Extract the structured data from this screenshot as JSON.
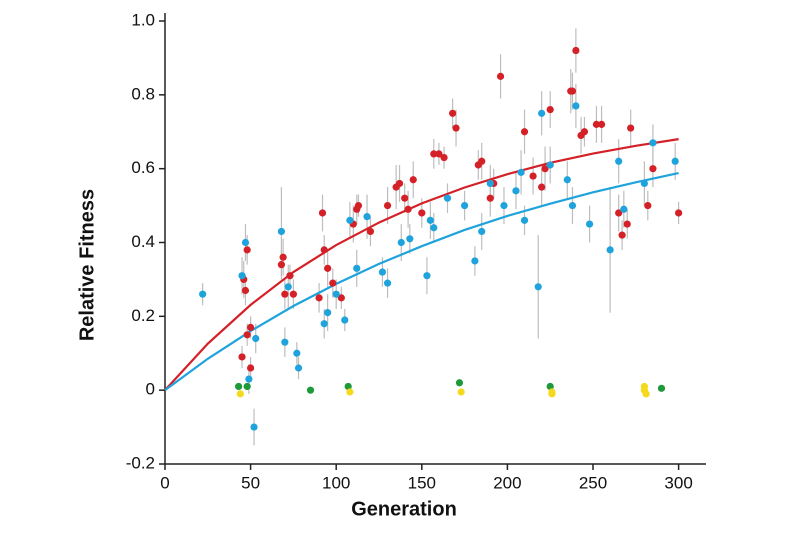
{
  "chart_data": {
    "type": "scatter",
    "xlabel": "Generation",
    "ylabel": "Relative Fitness",
    "xlim": [
      0,
      316
    ],
    "ylim": [
      -0.2,
      1.0
    ],
    "xticks": [
      0,
      50,
      100,
      150,
      200,
      250,
      300
    ],
    "yticks": [
      -0.2,
      0,
      0.2,
      0.4,
      0.6,
      0.8,
      {
        "value": 1,
        "label": "1.0"
      }
    ],
    "error_color": "#bdbdbd",
    "series": [
      {
        "color": "#d42027",
        "x": [
          45,
          46,
          47,
          48,
          48,
          50,
          50,
          68,
          69,
          70,
          73,
          75,
          90,
          92,
          93,
          95,
          98,
          103,
          110,
          112,
          113,
          120,
          130,
          135,
          137,
          140,
          142,
          145,
          150,
          157,
          160,
          163,
          168,
          170,
          183,
          185,
          190,
          192,
          196,
          210,
          215,
          220,
          222,
          225,
          237,
          238,
          240,
          243,
          245,
          252,
          255,
          265,
          267,
          270,
          272,
          282,
          285,
          300
        ],
        "values": [
          0.09,
          0.3,
          0.27,
          0.15,
          0.38,
          0.06,
          0.17,
          0.34,
          0.36,
          0.26,
          0.31,
          0.26,
          0.25,
          0.48,
          0.38,
          0.33,
          0.29,
          0.25,
          0.45,
          0.49,
          0.5,
          0.43,
          0.5,
          0.55,
          0.56,
          0.52,
          0.49,
          0.57,
          0.48,
          0.64,
          0.64,
          0.63,
          0.75,
          0.71,
          0.61,
          0.62,
          0.52,
          0.56,
          0.85,
          0.7,
          0.58,
          0.55,
          0.6,
          0.76,
          0.81,
          0.81,
          0.92,
          0.69,
          0.7,
          0.72,
          0.72,
          0.48,
          0.42,
          0.45,
          0.71,
          0.5,
          0.6,
          0.48
        ],
        "errors": [
          0.03,
          0.05,
          0.04,
          0.03,
          0.04,
          0.03,
          0.03,
          0.04,
          0.05,
          0.04,
          0.03,
          0.04,
          0.04,
          0.05,
          0.04,
          0.05,
          0.04,
          0.03,
          0.05,
          0.04,
          0.03,
          0.04,
          0.05,
          0.06,
          0.05,
          0.04,
          0.05,
          0.05,
          0.04,
          0.04,
          0.03,
          0.03,
          0.04,
          0.05,
          0.04,
          0.05,
          0.05,
          0.04,
          0.06,
          0.06,
          0.05,
          0.05,
          0.06,
          0.05,
          0.06,
          0.05,
          0.06,
          0.05,
          0.04,
          0.05,
          0.05,
          0.05,
          0.04,
          0.04,
          0.05,
          0.04,
          0.05,
          0.03
        ]
      },
      {
        "color": "#1fa3dc",
        "x": [
          22,
          45,
          47,
          49,
          52,
          53,
          68,
          70,
          72,
          77,
          78,
          93,
          95,
          100,
          105,
          108,
          112,
          118,
          127,
          130,
          138,
          143,
          153,
          155,
          157,
          165,
          175,
          181,
          185,
          190,
          198,
          205,
          208,
          210,
          218,
          220,
          225,
          235,
          238,
          240,
          248,
          260,
          265,
          268,
          280,
          285,
          298
        ],
        "values": [
          0.26,
          0.31,
          0.4,
          0.03,
          -0.1,
          0.14,
          0.43,
          0.13,
          0.28,
          0.1,
          0.06,
          0.18,
          0.21,
          0.26,
          0.19,
          0.46,
          0.33,
          0.47,
          0.32,
          0.29,
          0.4,
          0.41,
          0.31,
          0.46,
          0.44,
          0.52,
          0.5,
          0.35,
          0.43,
          0.56,
          0.5,
          0.54,
          0.59,
          0.46,
          0.28,
          0.75,
          0.61,
          0.57,
          0.5,
          0.77,
          0.45,
          0.38,
          0.62,
          0.49,
          0.56,
          0.67,
          0.62
        ],
        "errors": [
          0.03,
          0.05,
          0.05,
          0.04,
          0.05,
          0.04,
          0.12,
          0.04,
          0.06,
          0.03,
          0.03,
          0.04,
          0.05,
          0.04,
          0.03,
          0.05,
          0.05,
          0.06,
          0.04,
          0.04,
          0.05,
          0.04,
          0.05,
          0.05,
          0.04,
          0.04,
          0.04,
          0.04,
          0.05,
          0.05,
          0.05,
          0.05,
          0.06,
          0.04,
          0.14,
          0.06,
          0.05,
          0.05,
          0.05,
          0.06,
          0.05,
          0.17,
          0.06,
          0.05,
          0.06,
          0.05,
          0.05
        ]
      },
      {
        "color": "#1f9a3a",
        "x": [
          43,
          48,
          85,
          107,
          172,
          225,
          290
        ],
        "values": [
          0.01,
          0.01,
          0.0,
          0.01,
          0.02,
          0.01,
          0.005
        ]
      },
      {
        "color": "#f4d91c",
        "x": [
          44,
          108,
          173,
          226,
          226,
          280,
          280,
          281
        ],
        "values": [
          -0.01,
          -0.005,
          -0.005,
          -0.01,
          -0.005,
          0.01,
          0.0,
          -0.01
        ]
      },
      {
        "color": "#d42027",
        "style": "line",
        "x": [
          0,
          25,
          50,
          75,
          100,
          125,
          150,
          175,
          200,
          225,
          250,
          275,
          300
        ],
        "values": [
          0,
          0.126,
          0.231,
          0.32,
          0.393,
          0.454,
          0.506,
          0.549,
          0.585,
          0.616,
          0.641,
          0.662,
          0.68
        ]
      },
      {
        "color": "#1fa3dc",
        "style": "line",
        "x": [
          0,
          25,
          50,
          75,
          100,
          125,
          150,
          175,
          200,
          225,
          250,
          275,
          300
        ],
        "values": [
          0,
          0.085,
          0.16,
          0.228,
          0.288,
          0.342,
          0.39,
          0.434,
          0.472,
          0.505,
          0.536,
          0.563,
          0.588
        ]
      }
    ]
  }
}
